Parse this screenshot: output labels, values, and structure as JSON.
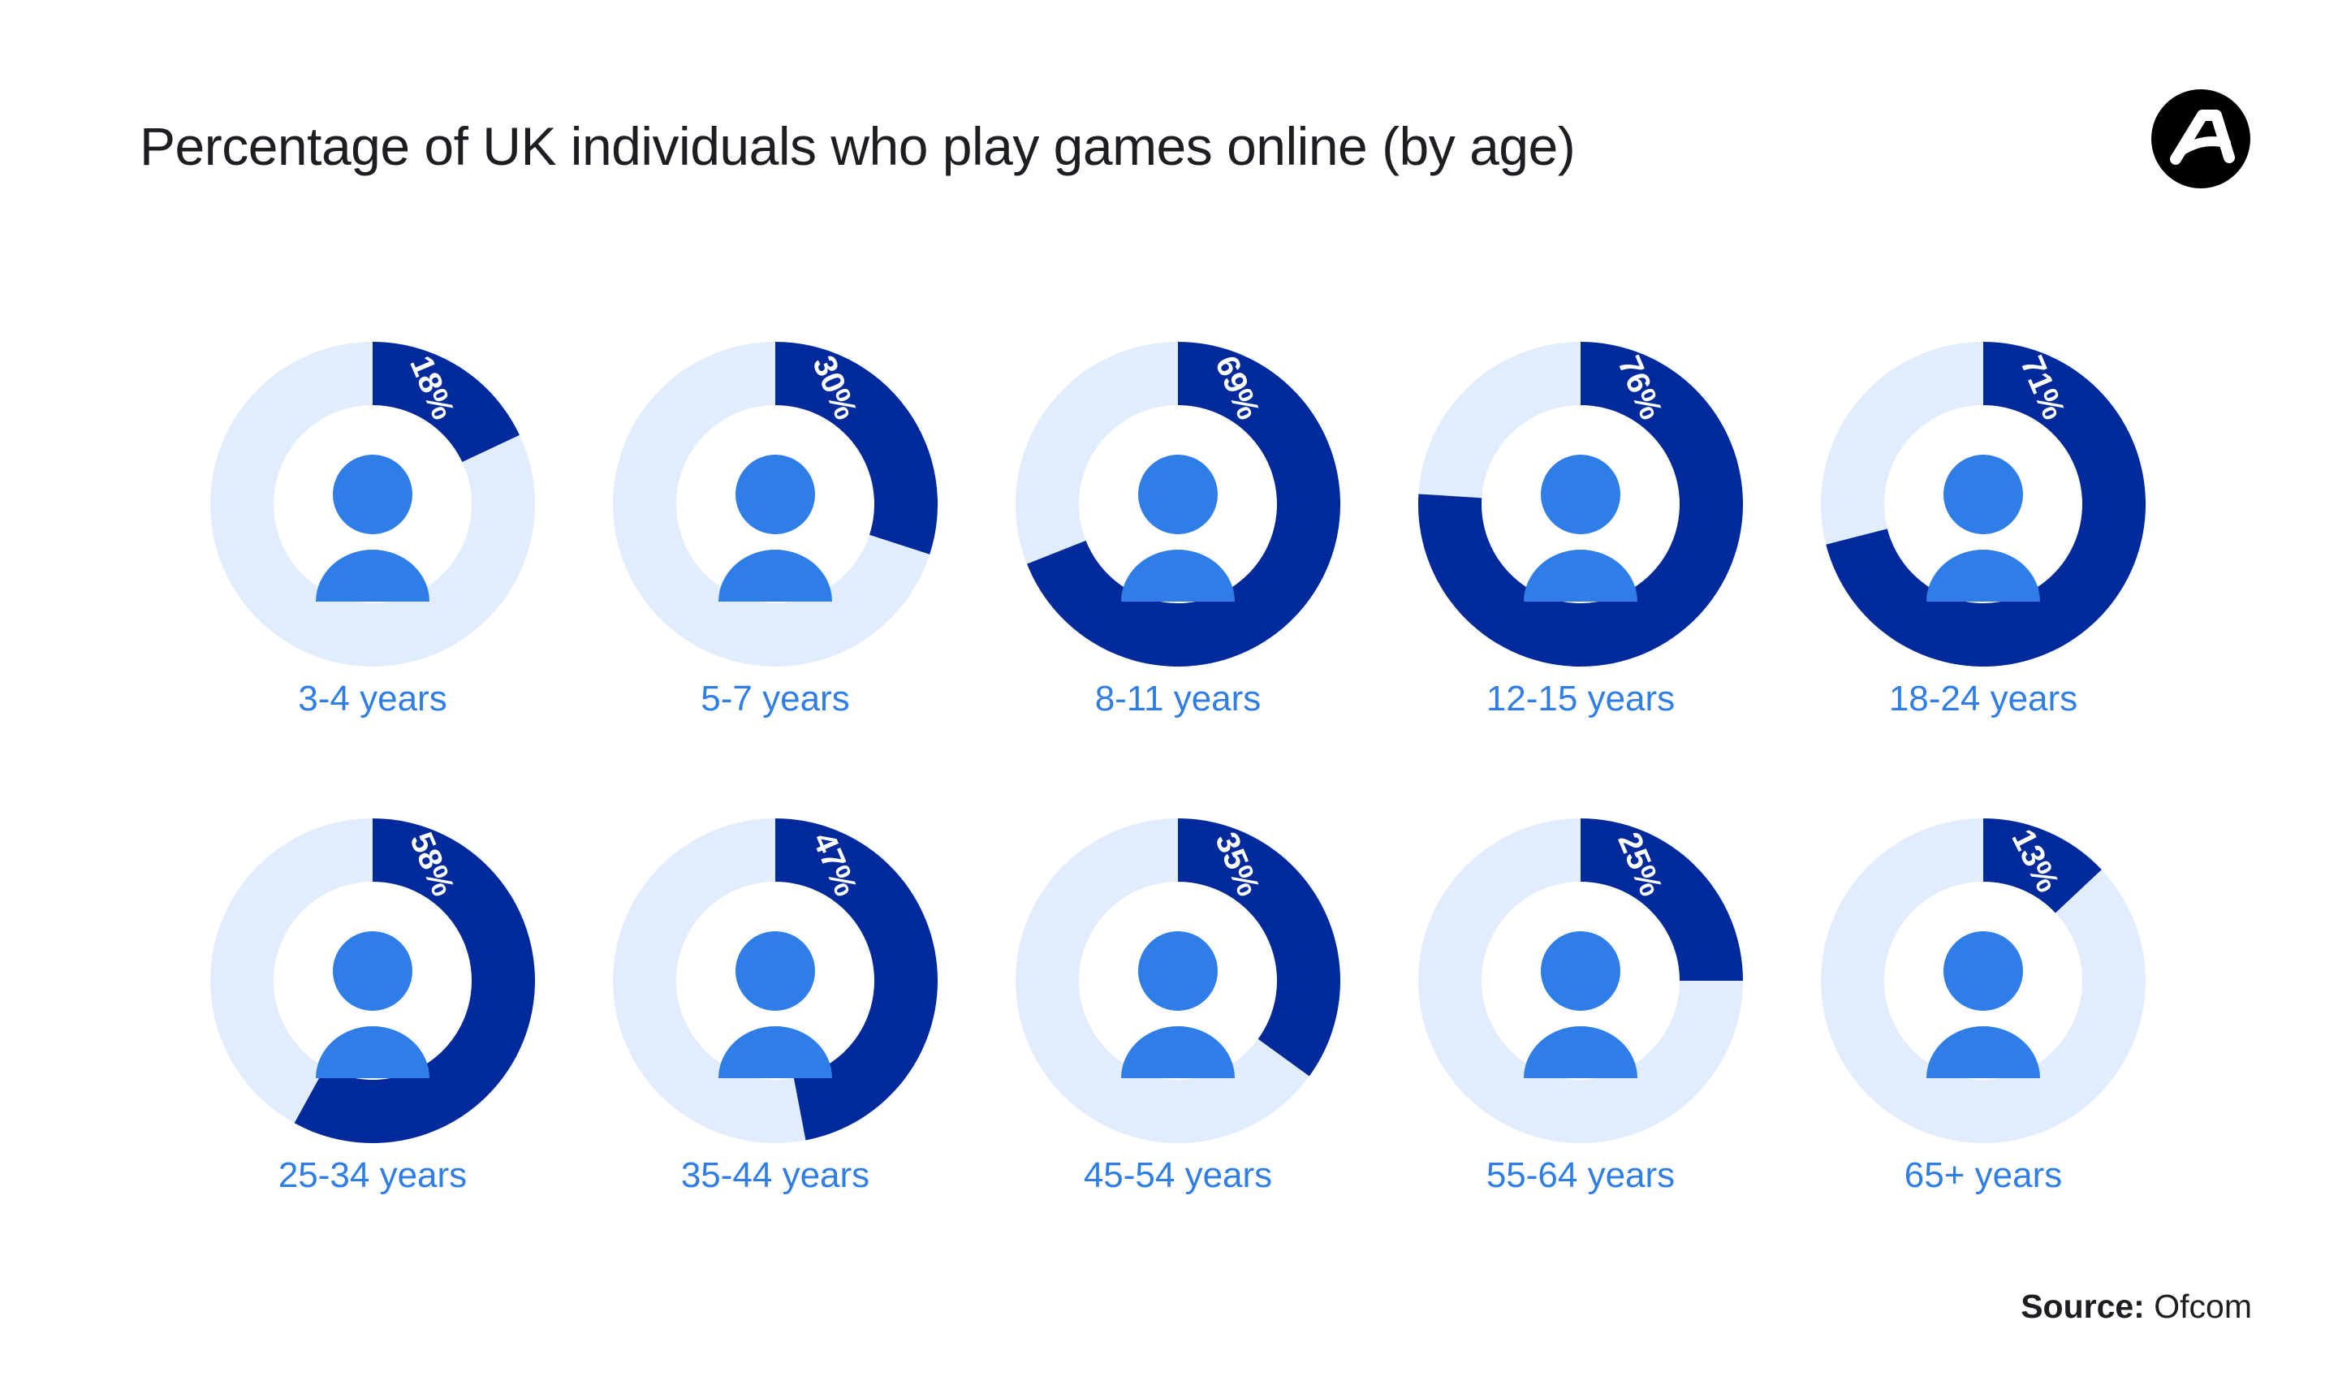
{
  "title": "Percentage of UK individuals who play games online (by age)",
  "source": {
    "label": "Source:",
    "value": "Ofcom"
  },
  "logo": {
    "icon": "brand-logo-icon"
  },
  "colors": {
    "filled": "#002a9b",
    "track": "#e1edfc",
    "person": "#2f7ee8",
    "label": "#2f7ee8",
    "title": "#1e1e22"
  },
  "chart_data": {
    "type": "pie",
    "variant": "donut-grid",
    "title": "Percentage of UK individuals who play games online (by age)",
    "categories": [
      "3-4 years",
      "5-7 years",
      "8-11 years",
      "12-15 years",
      "18-24 years",
      "25-34 years",
      "35-44 years",
      "45-54 years",
      "55-64 years",
      "65+ years"
    ],
    "values": [
      18,
      30,
      69,
      76,
      71,
      58,
      47,
      35,
      25,
      13
    ],
    "value_labels": [
      "18%",
      "30%",
      "69%",
      "76%",
      "71%",
      "58%",
      "47%",
      "35%",
      "25%",
      "13%"
    ],
    "unit": "%",
    "max": 100,
    "grid_layout": "2 rows x 5 columns"
  }
}
